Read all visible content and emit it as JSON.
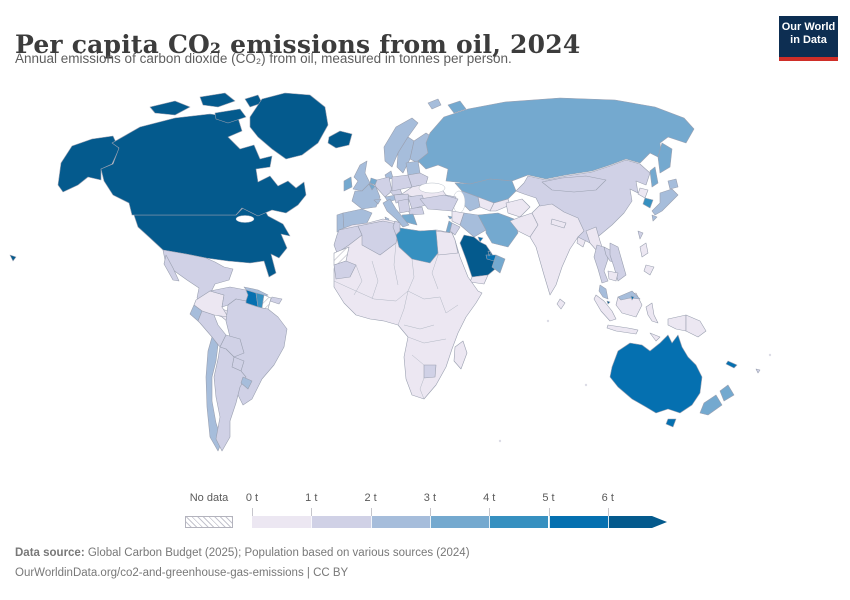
{
  "header": {
    "title": "Per capita CO₂ emissions from oil, 2024",
    "subtitle": "Annual emissions of carbon dioxide (CO₂) from oil, measured in tonnes per person.",
    "logo_line1": "Our World",
    "logo_line2": "in Data"
  },
  "legend": {
    "no_data_label": "No data",
    "tick_labels": [
      "0 t",
      "1 t",
      "2 t",
      "3 t",
      "4 t",
      "5 t",
      "6 t"
    ],
    "bin_colors": [
      "#ece7f2",
      "#d0d1e6",
      "#a6bddb",
      "#74a9cf",
      "#3690c0",
      "#0570b0",
      "#045a8d"
    ],
    "accent_navy": "#045a8d"
  },
  "footer": {
    "source_label": "Data source:",
    "source_text": " Global Carbon Budget (2025); Population based on various sources (2024)",
    "link_text": "OurWorldinData.org/co2-and-greenhouse-gas-emissions | CC BY"
  },
  "chart_data": {
    "type": "heatmap",
    "subtype": "choropleth-world-map",
    "title": "Per capita CO₂ emissions from oil, 2024",
    "unit": "tonnes of CO₂ per person",
    "legend_position": "bottom",
    "bins": [
      {
        "range": "0–1 t",
        "color": "#ece7f2"
      },
      {
        "range": "1–2 t",
        "color": "#d0d1e6"
      },
      {
        "range": "2–3 t",
        "color": "#a6bddb"
      },
      {
        "range": "3–4 t",
        "color": "#74a9cf"
      },
      {
        "range": "4–5 t",
        "color": "#3690c0"
      },
      {
        "range": "5–6 t",
        "color": "#0570b0"
      },
      {
        "range": "6+ t",
        "color": "#045a8d"
      },
      {
        "range": "No data",
        "color": "hatch"
      }
    ],
    "regions": [
      {
        "id": "usa",
        "label": "United States",
        "band": "6+ t",
        "color": "#045a8d"
      },
      {
        "id": "canada",
        "label": "Canada",
        "band": "6+ t",
        "color": "#045a8d"
      },
      {
        "id": "greenland",
        "label": "Greenland",
        "band": "6+ t",
        "color": "#045a8d"
      },
      {
        "id": "iceland",
        "label": "Iceland",
        "band": "6+ t",
        "color": "#045a8d"
      },
      {
        "id": "mexico",
        "label": "Mexico",
        "band": "1–2 t",
        "color": "#d0d1e6"
      },
      {
        "id": "central-america",
        "label": "Central America",
        "band": "0–1 t",
        "color": "#ece7f2"
      },
      {
        "id": "panama",
        "label": "Panama",
        "band": "2–3 t",
        "color": "#a6bddb"
      },
      {
        "id": "cuba",
        "label": "Cuba",
        "band": "2–3 t",
        "color": "#a6bddb"
      },
      {
        "id": "hispaniola",
        "label": "Hispaniola",
        "band": "1–2 t",
        "color": "#d0d1e6"
      },
      {
        "id": "jamaica",
        "label": "Jamaica",
        "band": "1–2 t",
        "color": "#d0d1e6"
      },
      {
        "id": "colombia",
        "label": "Colombia",
        "band": "0–1 t",
        "color": "#ece7f2"
      },
      {
        "id": "venezuela",
        "label": "Venezuela",
        "band": "1–2 t",
        "color": "#d0d1e6"
      },
      {
        "id": "guyana",
        "label": "Guyana",
        "band": "5–6 t",
        "color": "#0570b0"
      },
      {
        "id": "suriname",
        "label": "Suriname",
        "band": "4–5 t",
        "color": "#3690c0"
      },
      {
        "id": "french-guiana",
        "label": "French Guiana",
        "band": "No data",
        "color": "hatch"
      },
      {
        "id": "brazil",
        "label": "Brazil",
        "band": "1–2 t",
        "color": "#d0d1e6"
      },
      {
        "id": "ecuador",
        "label": "Ecuador",
        "band": "2–3 t",
        "color": "#a6bddb"
      },
      {
        "id": "peru",
        "label": "Peru",
        "band": "1–2 t",
        "color": "#d0d1e6"
      },
      {
        "id": "bolivia",
        "label": "Bolivia",
        "band": "1–2 t",
        "color": "#d0d1e6"
      },
      {
        "id": "paraguay",
        "label": "Paraguay",
        "band": "1–2 t",
        "color": "#d0d1e6"
      },
      {
        "id": "chile",
        "label": "Chile",
        "band": "2–3 t",
        "color": "#a6bddb"
      },
      {
        "id": "argentina",
        "label": "Argentina",
        "band": "1–2 t",
        "color": "#d0d1e6"
      },
      {
        "id": "uruguay",
        "label": "Uruguay",
        "band": "2–3 t",
        "color": "#a6bddb"
      },
      {
        "id": "norway",
        "label": "Norway",
        "band": "2–3 t",
        "color": "#a6bddb"
      },
      {
        "id": "sweden",
        "label": "Sweden",
        "band": "2–3 t",
        "color": "#a6bddb"
      },
      {
        "id": "finland",
        "label": "Finland",
        "band": "2–3 t",
        "color": "#a6bddb"
      },
      {
        "id": "denmark",
        "label": "Denmark",
        "band": "2–3 t",
        "color": "#a6bddb"
      },
      {
        "id": "uk",
        "label": "United Kingdom",
        "band": "2–3 t",
        "color": "#a6bddb"
      },
      {
        "id": "ireland",
        "label": "Ireland",
        "band": "3–4 t",
        "color": "#74a9cf"
      },
      {
        "id": "portugal",
        "label": "Portugal",
        "band": "2–3 t",
        "color": "#a6bddb"
      },
      {
        "id": "spain",
        "label": "Spain",
        "band": "2–3 t",
        "color": "#a6bddb"
      },
      {
        "id": "france",
        "label": "France",
        "band": "2–3 t",
        "color": "#a6bddb"
      },
      {
        "id": "belgium",
        "label": "Belgium",
        "band": "3–4 t",
        "color": "#74a9cf"
      },
      {
        "id": "netherlands",
        "label": "Netherlands",
        "band": "3–4 t",
        "color": "#74a9cf"
      },
      {
        "id": "germany",
        "label": "Germany",
        "band": "1–2 t",
        "color": "#d0d1e6"
      },
      {
        "id": "switzerland",
        "label": "Switzerland",
        "band": "2–3 t",
        "color": "#a6bddb"
      },
      {
        "id": "austria",
        "label": "Austria",
        "band": "2–3 t",
        "color": "#a6bddb"
      },
      {
        "id": "czechia",
        "label": "Czechia",
        "band": "1–2 t",
        "color": "#d0d1e6"
      },
      {
        "id": "poland",
        "label": "Poland",
        "band": "1–2 t",
        "color": "#d0d1e6"
      },
      {
        "id": "baltics",
        "label": "Baltic states",
        "band": "2–3 t",
        "color": "#a6bddb"
      },
      {
        "id": "belarus",
        "label": "Belarus",
        "band": "1–2 t",
        "color": "#d0d1e6"
      },
      {
        "id": "ukraine",
        "label": "Ukraine",
        "band": "0–1 t",
        "color": "#ece7f2"
      },
      {
        "id": "hungary-slovakia",
        "label": "Hungary / Slovakia",
        "band": "1–2 t",
        "color": "#d0d1e6"
      },
      {
        "id": "romania",
        "label": "Romania",
        "band": "1–2 t",
        "color": "#d0d1e6"
      },
      {
        "id": "bulgaria",
        "label": "Bulgaria",
        "band": "1–2 t",
        "color": "#d0d1e6"
      },
      {
        "id": "balkans",
        "label": "Western Balkans",
        "band": "1–2 t",
        "color": "#d0d1e6"
      },
      {
        "id": "greece",
        "label": "Greece",
        "band": "3–4 t",
        "color": "#74a9cf"
      },
      {
        "id": "italy",
        "label": "Italy",
        "band": "2–3 t",
        "color": "#a6bddb"
      },
      {
        "id": "russia",
        "label": "Russia",
        "band": "3–4 t",
        "color": "#74a9cf"
      },
      {
        "id": "svalbard",
        "label": "Svalbard",
        "band": "2–3 t",
        "color": "#a6bddb"
      },
      {
        "id": "kazakhstan",
        "label": "Kazakhstan",
        "band": "3–4 t",
        "color": "#74a9cf"
      },
      {
        "id": "uzbekistan",
        "label": "Uzbekistan",
        "band": "0–1 t",
        "color": "#ece7f2"
      },
      {
        "id": "turkmenistan",
        "label": "Turkmenistan",
        "band": "2–3 t",
        "color": "#a6bddb"
      },
      {
        "id": "kyrgyzstan-tajikistan",
        "label": "Kyrgyzstan / Tajikistan",
        "band": "0–1 t",
        "color": "#ece7f2"
      },
      {
        "id": "caucasus",
        "label": "Caucasus",
        "band": "1–2 t",
        "color": "#d0d1e6"
      },
      {
        "id": "turkey",
        "label": "Turkey",
        "band": "1–2 t",
        "color": "#d0d1e6"
      },
      {
        "id": "cyprus",
        "label": "Cyprus",
        "band": "3–4 t",
        "color": "#74a9cf"
      },
      {
        "id": "syria",
        "label": "Syria",
        "band": "0–1 t",
        "color": "#ece7f2"
      },
      {
        "id": "israel-lebanon",
        "label": "Israel / Lebanon",
        "band": "3–4 t",
        "color": "#74a9cf"
      },
      {
        "id": "jordan",
        "label": "Jordan",
        "band": "1–2 t",
        "color": "#d0d1e6"
      },
      {
        "id": "iraq",
        "label": "Iraq",
        "band": "2–3 t",
        "color": "#a6bddb"
      },
      {
        "id": "iran",
        "label": "Iran",
        "band": "3–4 t",
        "color": "#74a9cf"
      },
      {
        "id": "kuwait",
        "label": "Kuwait",
        "band": "5–6 t",
        "color": "#0570b0"
      },
      {
        "id": "saudi-arabia",
        "label": "Saudi Arabia",
        "band": "6+ t",
        "color": "#045a8d"
      },
      {
        "id": "qatar",
        "label": "Qatar",
        "band": "6+ t",
        "color": "#045a8d"
      },
      {
        "id": "uae",
        "label": "United Arab Emirates",
        "band": "5–6 t",
        "color": "#0570b0"
      },
      {
        "id": "oman",
        "label": "Oman",
        "band": "3–4 t",
        "color": "#74a9cf"
      },
      {
        "id": "yemen",
        "label": "Yemen",
        "band": "0–1 t",
        "color": "#ece7f2"
      },
      {
        "id": "afghanistan",
        "label": "Afghanistan",
        "band": "0–1 t",
        "color": "#ece7f2"
      },
      {
        "id": "pakistan",
        "label": "Pakistan",
        "band": "0–1 t",
        "color": "#ece7f2"
      },
      {
        "id": "india",
        "label": "India",
        "band": "0–1 t",
        "color": "#ece7f2"
      },
      {
        "id": "nepal",
        "label": "Nepal",
        "band": "0–1 t",
        "color": "#ece7f2"
      },
      {
        "id": "bangladesh",
        "label": "Bangladesh",
        "band": "0–1 t",
        "color": "#ece7f2"
      },
      {
        "id": "sri-lanka",
        "label": "Sri Lanka",
        "band": "0–1 t",
        "color": "#ece7f2"
      },
      {
        "id": "china",
        "label": "China",
        "band": "1–2 t",
        "color": "#d0d1e6"
      },
      {
        "id": "mongolia",
        "label": "Mongolia",
        "band": "1–2 t",
        "color": "#d0d1e6"
      },
      {
        "id": "north-korea",
        "label": "North Korea",
        "band": "0–1 t",
        "color": "#ece7f2"
      },
      {
        "id": "south-korea",
        "label": "South Korea",
        "band": "4–5 t",
        "color": "#3690c0"
      },
      {
        "id": "japan",
        "label": "Japan",
        "band": "2–3 t",
        "color": "#a6bddb"
      },
      {
        "id": "taiwan",
        "label": "Taiwan",
        "band": "1–2 t",
        "color": "#d0d1e6"
      },
      {
        "id": "myanmar",
        "label": "Myanmar",
        "band": "0–1 t",
        "color": "#ece7f2"
      },
      {
        "id": "thailand",
        "label": "Thailand",
        "band": "1–2 t",
        "color": "#d0d1e6"
      },
      {
        "id": "laos",
        "label": "Laos",
        "band": "1–2 t",
        "color": "#d0d1e6"
      },
      {
        "id": "vietnam",
        "label": "Vietnam",
        "band": "1–2 t",
        "color": "#d0d1e6"
      },
      {
        "id": "cambodia",
        "label": "Cambodia",
        "band": "0–1 t",
        "color": "#ece7f2"
      },
      {
        "id": "malaysia",
        "label": "Malaysia",
        "band": "2–3 t",
        "color": "#a6bddb"
      },
      {
        "id": "singapore",
        "label": "Singapore",
        "band": "6+ t",
        "color": "#045a8d"
      },
      {
        "id": "brunei",
        "label": "Brunei",
        "band": "5–6 t",
        "color": "#0570b0"
      },
      {
        "id": "indonesia",
        "label": "Indonesia",
        "band": "0–1 t",
        "color": "#ece7f2"
      },
      {
        "id": "philippines",
        "label": "Philippines",
        "band": "0–1 t",
        "color": "#ece7f2"
      },
      {
        "id": "papua-new-guinea",
        "label": "Papua New Guinea",
        "band": "0–1 t",
        "color": "#ece7f2"
      },
      {
        "id": "australia",
        "label": "Australia",
        "band": "5–6 t",
        "color": "#0570b0"
      },
      {
        "id": "new-zealand",
        "label": "New Zealand",
        "band": "3–4 t",
        "color": "#74a9cf"
      },
      {
        "id": "new-caledonia",
        "label": "New Caledonia",
        "band": "5–6 t",
        "color": "#0570b0"
      },
      {
        "id": "fiji",
        "label": "Fiji",
        "band": "1–2 t",
        "color": "#d0d1e6"
      },
      {
        "id": "morocco",
        "label": "Morocco",
        "band": "1–2 t",
        "color": "#d0d1e6"
      },
      {
        "id": "western-sahara",
        "label": "Western Sahara",
        "band": "No data",
        "color": "hatch"
      },
      {
        "id": "algeria",
        "label": "Algeria",
        "band": "1–2 t",
        "color": "#d0d1e6"
      },
      {
        "id": "tunisia",
        "label": "Tunisia",
        "band": "1–2 t",
        "color": "#d0d1e6"
      },
      {
        "id": "libya",
        "label": "Libya",
        "band": "4–5 t",
        "color": "#3690c0"
      },
      {
        "id": "egypt",
        "label": "Egypt",
        "band": "0–1 t",
        "color": "#ece7f2"
      },
      {
        "id": "mauritania",
        "label": "Mauritania",
        "band": "1–2 t",
        "color": "#d0d1e6"
      },
      {
        "id": "botswana",
        "label": "Botswana",
        "band": "1–2 t",
        "color": "#d0d1e6"
      },
      {
        "id": "madagascar",
        "label": "Madagascar",
        "band": "0–1 t",
        "color": "#ece7f2"
      },
      {
        "id": "africa-other",
        "label": "Rest of Africa",
        "band": "0–1 t",
        "color": "#ece7f2"
      }
    ]
  }
}
